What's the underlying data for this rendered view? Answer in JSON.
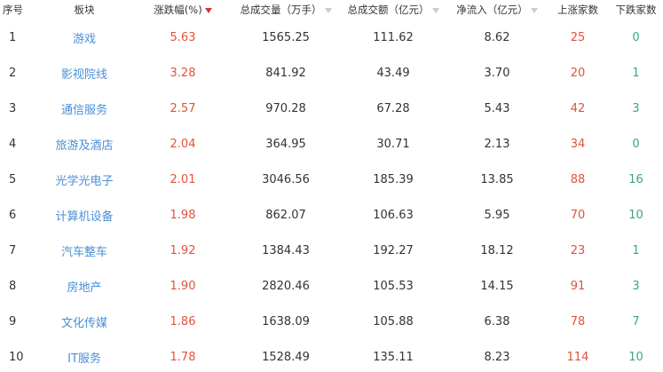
{
  "headers": {
    "index": "序号",
    "sector": "板块",
    "change_pct": "涨跌幅(%)",
    "volume": "总成交量（万手）",
    "turnover": "总成交额（亿元）",
    "net_inflow": "净流入（亿元）",
    "up_count": "上涨家数",
    "down_count": "下跌家数"
  },
  "sort": {
    "column": "change_pct",
    "direction": "desc"
  },
  "colors": {
    "up": "#e0533b",
    "down": "#3aa87a",
    "link": "#4a8fd6"
  },
  "rows": [
    {
      "index": "1",
      "sector": "游戏",
      "change_pct": "5.63",
      "volume": "1565.25",
      "turnover": "111.62",
      "net_inflow": "8.62",
      "up": "25",
      "down": "0"
    },
    {
      "index": "2",
      "sector": "影视院线",
      "change_pct": "3.28",
      "volume": "841.92",
      "turnover": "43.49",
      "net_inflow": "3.70",
      "up": "20",
      "down": "1"
    },
    {
      "index": "3",
      "sector": "通信服务",
      "change_pct": "2.57",
      "volume": "970.28",
      "turnover": "67.28",
      "net_inflow": "5.43",
      "up": "42",
      "down": "3"
    },
    {
      "index": "4",
      "sector": "旅游及酒店",
      "change_pct": "2.04",
      "volume": "364.95",
      "turnover": "30.71",
      "net_inflow": "2.13",
      "up": "34",
      "down": "0"
    },
    {
      "index": "5",
      "sector": "光学光电子",
      "change_pct": "2.01",
      "volume": "3046.56",
      "turnover": "185.39",
      "net_inflow": "13.85",
      "up": "88",
      "down": "16"
    },
    {
      "index": "6",
      "sector": "计算机设备",
      "change_pct": "1.98",
      "volume": "862.07",
      "turnover": "106.63",
      "net_inflow": "5.95",
      "up": "70",
      "down": "10"
    },
    {
      "index": "7",
      "sector": "汽车整车",
      "change_pct": "1.92",
      "volume": "1384.43",
      "turnover": "192.27",
      "net_inflow": "18.12",
      "up": "23",
      "down": "1"
    },
    {
      "index": "8",
      "sector": "房地产",
      "change_pct": "1.90",
      "volume": "2820.46",
      "turnover": "105.53",
      "net_inflow": "14.15",
      "up": "91",
      "down": "3"
    },
    {
      "index": "9",
      "sector": "文化传媒",
      "change_pct": "1.86",
      "volume": "1638.09",
      "turnover": "105.88",
      "net_inflow": "6.38",
      "up": "78",
      "down": "7"
    },
    {
      "index": "10",
      "sector": "IT服务",
      "change_pct": "1.78",
      "volume": "1528.49",
      "turnover": "135.11",
      "net_inflow": "8.23",
      "up": "114",
      "down": "10"
    }
  ]
}
